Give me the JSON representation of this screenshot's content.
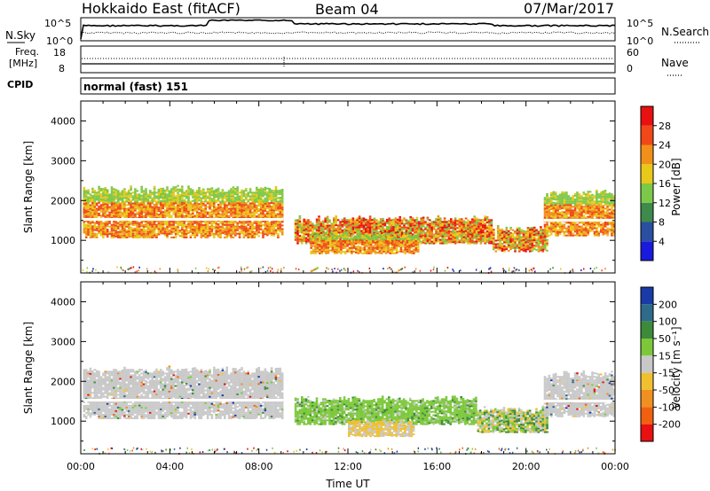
{
  "header": {
    "station": "Hokkaido East (fitACF)",
    "beam": "Beam 04",
    "date": "07/Mar/2017"
  },
  "noise_panel": {
    "left_label": "N.Sky",
    "left_ticks": [
      "10^5",
      "10^0"
    ],
    "right_ticks": [
      "10^5",
      "10^0"
    ],
    "right_label": "N.Search"
  },
  "freq_panel": {
    "left_label_1": "Freq.",
    "left_label_2": "[MHz]",
    "left_ticks": [
      "18",
      "8"
    ],
    "right_ticks": [
      "60",
      "0"
    ],
    "right_label": "Nave"
  },
  "cpid_panel": {
    "label": "CPID",
    "value": "normal (fast) 151"
  },
  "chart_data": [
    {
      "type": "heatmap",
      "name": "power",
      "ylabel": "Slant Range [km]",
      "xlabel": "Time UT",
      "x_range_hours": [
        0,
        24
      ],
      "ylim": [
        180,
        4500
      ],
      "y_ticks": [
        "1000",
        "2000",
        "3000",
        "4000"
      ],
      "x_ticks": [
        "00:00",
        "04:00",
        "08:00",
        "12:00",
        "16:00",
        "20:00",
        "00:00"
      ],
      "colorbar": {
        "label": "Power [dB]",
        "ticks": [
          "4",
          "8",
          "12",
          "16",
          "20",
          "24",
          "28"
        ],
        "colors": [
          "#1a1adc",
          "#2a4fa0",
          "#3d8a4a",
          "#7cc848",
          "#e8c818",
          "#f09018",
          "#f04818",
          "#e81010"
        ]
      },
      "echo_regions": [
        {
          "t0": 0.1,
          "t1": 9.1,
          "r0": 1050,
          "r1": 2300,
          "level": "high"
        },
        {
          "t0": 9.6,
          "t1": 18.5,
          "r0": 900,
          "r1": 1550,
          "level": "mixed"
        },
        {
          "t0": 10.3,
          "t1": 15.2,
          "r0": 650,
          "r1": 1150,
          "level": "high"
        },
        {
          "t0": 18.5,
          "t1": 21.0,
          "r0": 700,
          "r1": 1300,
          "level": "mixed"
        },
        {
          "t0": 20.8,
          "t1": 24.0,
          "r0": 1100,
          "r1": 2200,
          "level": "high"
        }
      ]
    },
    {
      "type": "heatmap",
      "name": "velocity",
      "ylabel": "Slant Range [km]",
      "xlabel": "Time UT",
      "x_range_hours": [
        0,
        24
      ],
      "ylim": [
        180,
        4500
      ],
      "y_ticks": [
        "1000",
        "2000",
        "3000",
        "4000"
      ],
      "x_ticks": [
        "00:00",
        "04:00",
        "08:00",
        "12:00",
        "16:00",
        "20:00",
        "00:00"
      ],
      "colorbar": {
        "label": "Velocity [m s⁻¹]",
        "ticks": [
          "200",
          "100",
          "50",
          "15",
          "-15",
          "-50",
          "-100",
          "-200"
        ],
        "colors": [
          "#1a3aa8",
          "#2e6a8a",
          "#3d8a3a",
          "#7cc83a",
          "#c8c8c8",
          "#f0c030",
          "#f09020",
          "#f06010",
          "#e81010"
        ]
      },
      "echo_regions": [
        {
          "t0": 0.1,
          "t1": 9.1,
          "r0": 1050,
          "r1": 2300,
          "level": "ground"
        },
        {
          "t0": 9.6,
          "t1": 17.8,
          "r0": 900,
          "r1": 1550,
          "level": "positive"
        },
        {
          "t0": 12.0,
          "t1": 15.0,
          "r0": 600,
          "r1": 1000,
          "level": "negative"
        },
        {
          "t0": 17.8,
          "t1": 21.0,
          "r0": 700,
          "r1": 1300,
          "level": "mixed"
        },
        {
          "t0": 20.8,
          "t1": 24.0,
          "r0": 1100,
          "r1": 2200,
          "level": "ground"
        }
      ]
    }
  ]
}
